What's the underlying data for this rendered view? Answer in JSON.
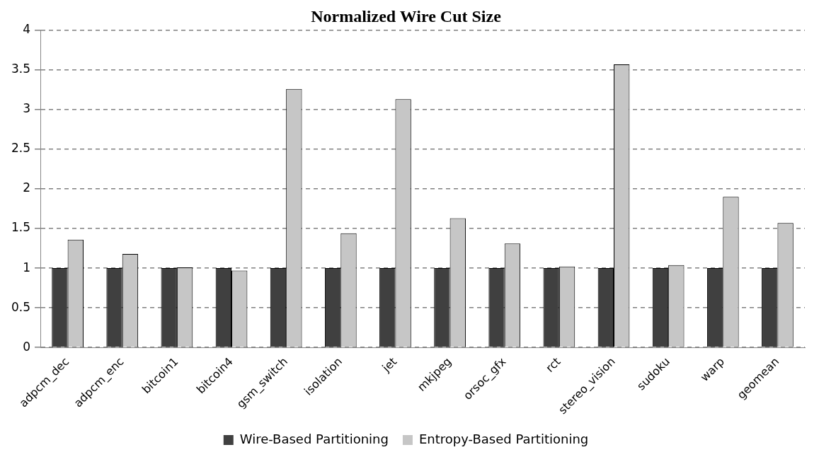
{
  "chart_data": {
    "type": "bar",
    "title": "Normalized Wire Cut Size",
    "categories": [
      "adpcm_dec",
      "adpcm_enc",
      "bitcoin1",
      "bitcoin4",
      "gsm_switch",
      "isolation",
      "jet",
      "mkjpeg",
      "orsoc_gfx",
      "rct",
      "stereo_vision",
      "sudoku",
      "warp",
      "geomean"
    ],
    "series": [
      {
        "name": "Wire-Based Partitioning",
        "color": "#404040",
        "values": [
          1,
          1,
          1,
          1,
          1,
          1,
          1,
          1,
          1,
          1,
          1,
          1,
          1,
          1
        ]
      },
      {
        "name": "Entropy-Based Partitioning",
        "color": "#c6c6c6",
        "values": [
          1.36,
          1.18,
          1.01,
          0.97,
          3.26,
          1.44,
          3.13,
          1.63,
          1.31,
          1.02,
          3.57,
          1.04,
          1.9,
          1.57
        ]
      }
    ],
    "ylim": [
      0,
      4
    ],
    "yticks": [
      0,
      0.5,
      1,
      1.5,
      2,
      2.5,
      3,
      3.5,
      4
    ],
    "grid": "y",
    "legend": "bottom"
  }
}
